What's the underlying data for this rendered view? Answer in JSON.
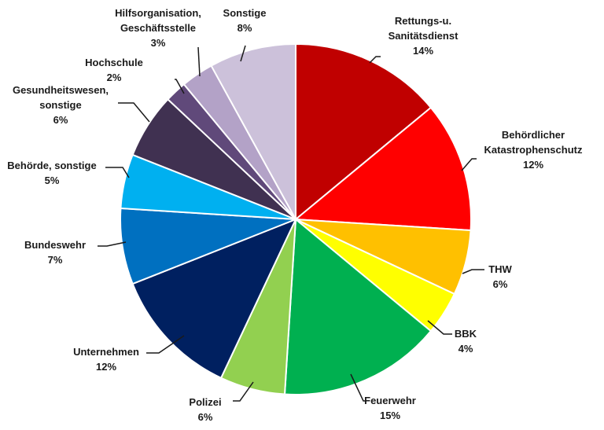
{
  "chart_data": {
    "type": "pie",
    "title": "",
    "start_angle_deg": 0,
    "direction": "clockwise",
    "unit": "%",
    "slices": [
      {
        "label": [
          "Rettungs-u.",
          "Sanitätsdienst"
        ],
        "value": 14,
        "pct_label": "14%",
        "color": "#C00000"
      },
      {
        "label": [
          "Behördlicher",
          "Katastrophenschutz"
        ],
        "value": 12,
        "pct_label": "12%",
        "color": "#FF0000"
      },
      {
        "label": [
          "THW"
        ],
        "value": 6,
        "pct_label": "6%",
        "color": "#FFC000"
      },
      {
        "label": [
          "BBK"
        ],
        "value": 4,
        "pct_label": "4%",
        "color": "#FFFF00"
      },
      {
        "label": [
          "Feuerwehr"
        ],
        "value": 15,
        "pct_label": "15%",
        "color": "#00B050"
      },
      {
        "label": [
          "Polizei"
        ],
        "value": 6,
        "pct_label": "6%",
        "color": "#92D050"
      },
      {
        "label": [
          "Unternehmen"
        ],
        "value": 12,
        "pct_label": "12%",
        "color": "#002060"
      },
      {
        "label": [
          "Bundeswehr"
        ],
        "value": 7,
        "pct_label": "7%",
        "color": "#0070C0"
      },
      {
        "label": [
          "Behörde, sonstige"
        ],
        "value": 5,
        "pct_label": "5%",
        "color": "#00B0F0"
      },
      {
        "label": [
          "Gesundheitswesen,",
          "sonstige"
        ],
        "value": 6,
        "pct_label": "6%",
        "color": "#403151"
      },
      {
        "label": [
          "Hochschule"
        ],
        "value": 2,
        "pct_label": "2%",
        "color": "#60497A"
      },
      {
        "label": [
          "Hilfsorganisation,",
          "Geschäftsstelle"
        ],
        "value": 3,
        "pct_label": "3%",
        "color": "#B3A2C7"
      },
      {
        "label": [
          "Sonstige"
        ],
        "value": 8,
        "pct_label": "8%",
        "color": "#CCC1DA"
      }
    ]
  }
}
